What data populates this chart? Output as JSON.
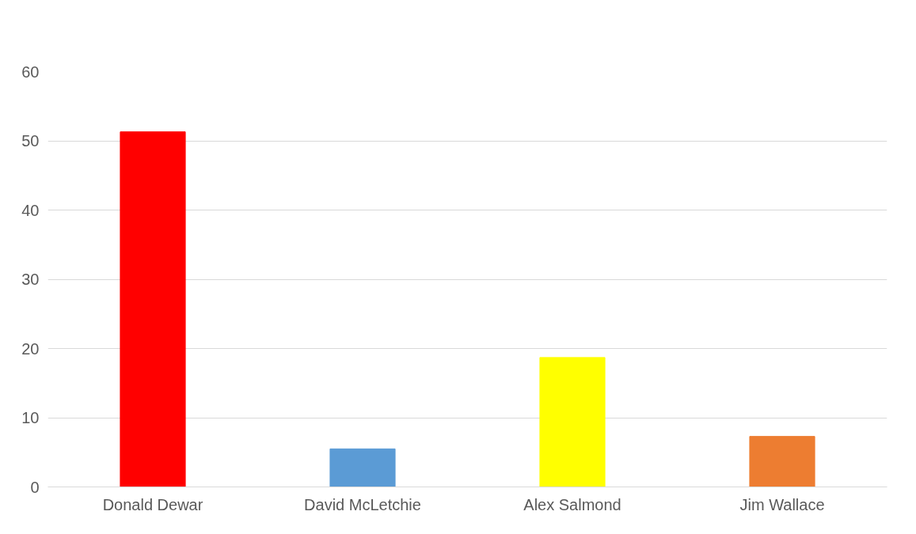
{
  "chart_data": {
    "type": "bar",
    "categories": [
      "Donald Dewar",
      "David McLetchie",
      "Alex Salmond",
      "Jim Wallace"
    ],
    "values": [
      51.3,
      5.5,
      18.7,
      7.3
    ],
    "colors": [
      "#ff0000",
      "#5b9bd5",
      "#ffff00",
      "#ed7d31"
    ],
    "ylim": [
      0,
      60
    ],
    "yticks": [
      0,
      10,
      20,
      30,
      40,
      50,
      60
    ],
    "grid": "y"
  }
}
